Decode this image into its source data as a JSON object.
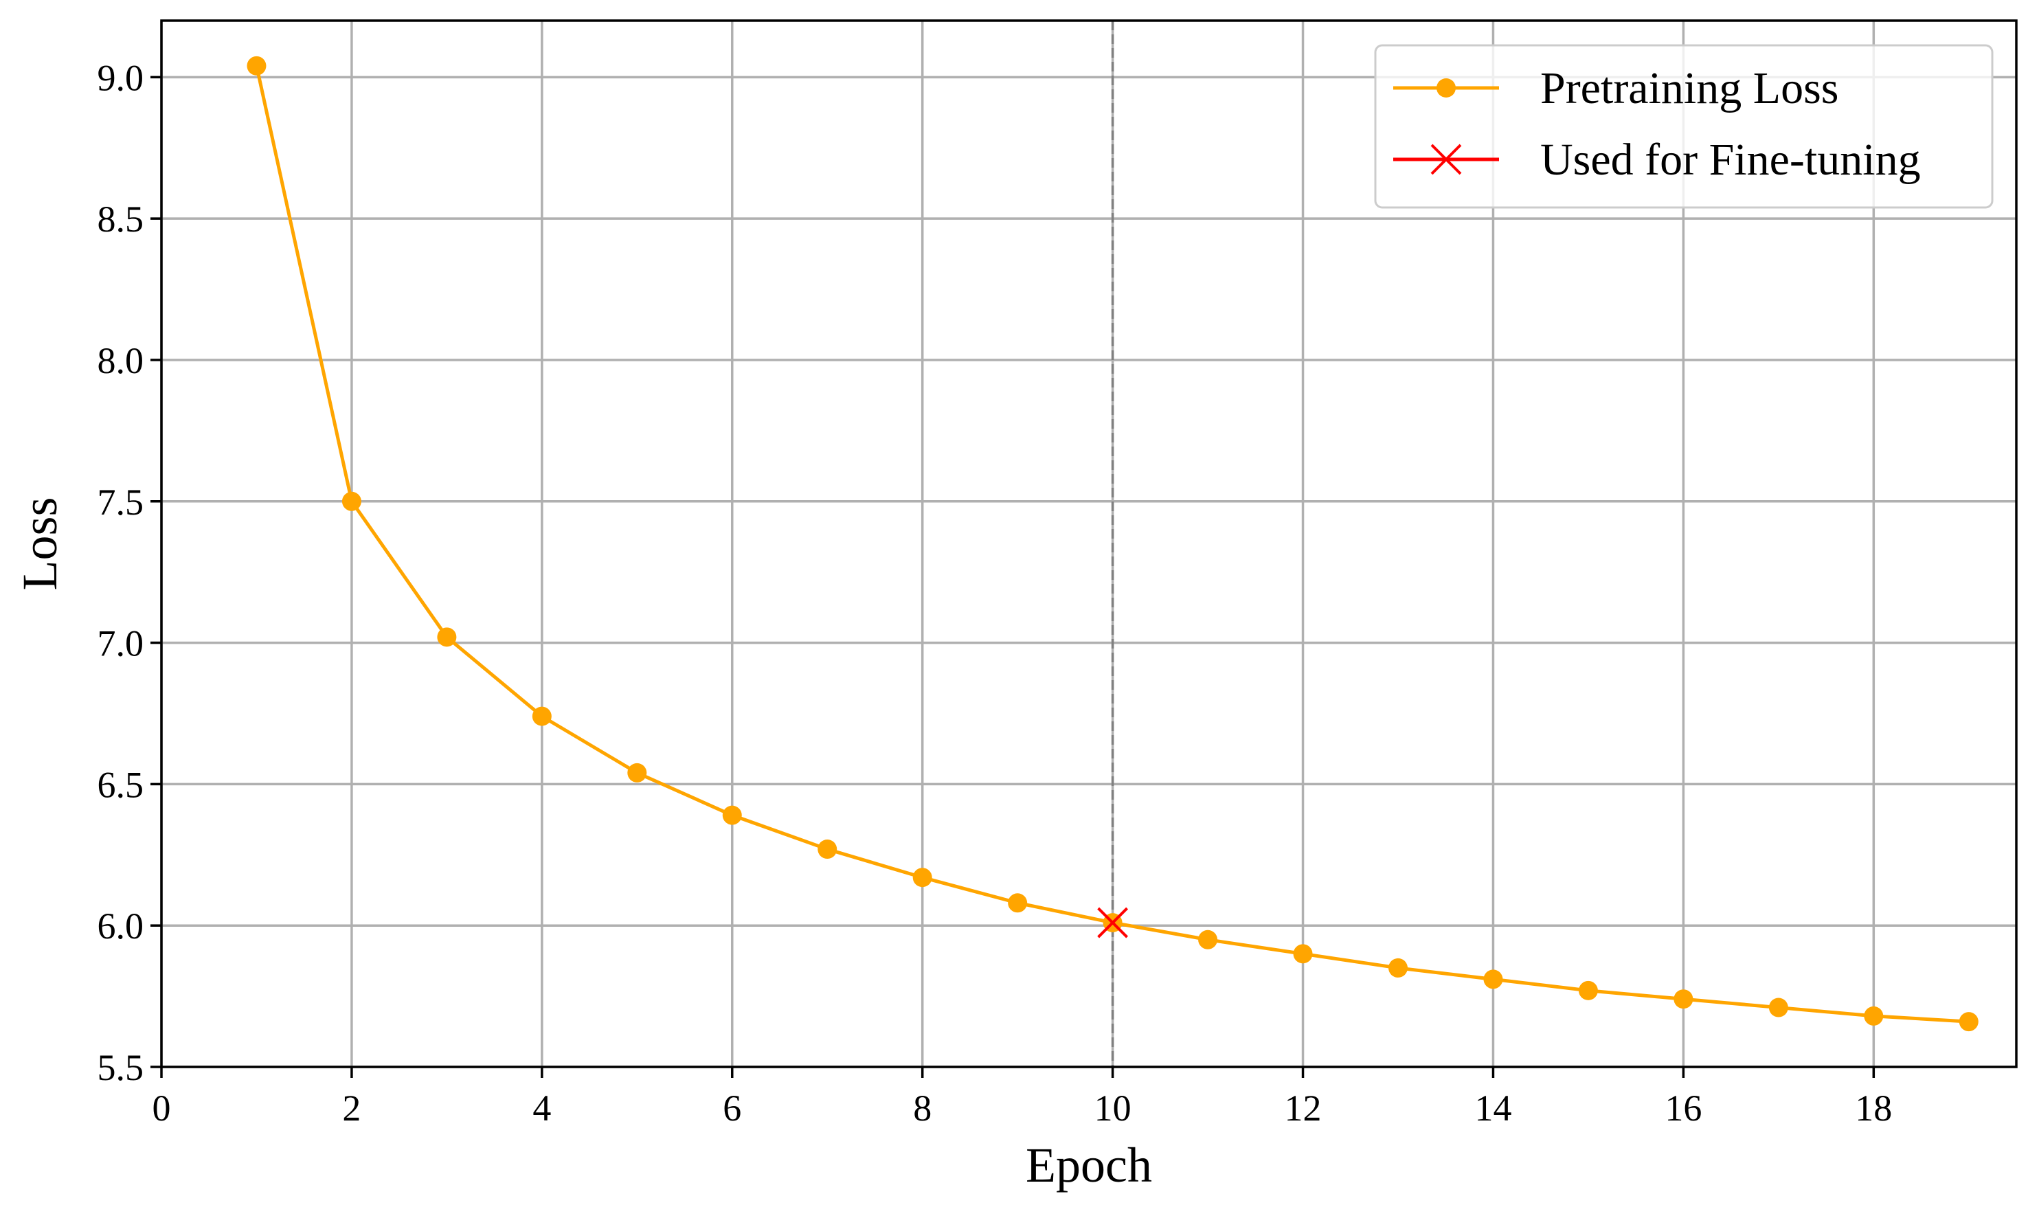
{
  "chart_data": {
    "type": "line",
    "title": "",
    "xlabel": "Epoch",
    "ylabel": "Loss",
    "xlim": [
      0,
      19.5
    ],
    "ylim": [
      5.5,
      9.2
    ],
    "xticks": [
      0,
      2,
      4,
      6,
      8,
      10,
      12,
      14,
      16,
      18
    ],
    "yticks": [
      5.5,
      6.0,
      6.5,
      7.0,
      7.5,
      8.0,
      8.5,
      9.0
    ],
    "ytick_labels": [
      "5.5",
      "6.0",
      "6.5",
      "7.0",
      "7.5",
      "8.0",
      "8.5",
      "9.0"
    ],
    "grid": true,
    "legend_position": "upper right",
    "x": [
      1,
      2,
      3,
      4,
      5,
      6,
      7,
      8,
      9,
      10,
      11,
      12,
      13,
      14,
      15,
      16,
      17,
      18,
      19
    ],
    "series": [
      {
        "name": "Pretraining Loss",
        "color": "#FFA500",
        "marker": "circle",
        "values": [
          9.04,
          7.5,
          7.02,
          6.74,
          6.54,
          6.39,
          6.27,
          6.17,
          6.08,
          6.01,
          5.95,
          5.9,
          5.85,
          5.81,
          5.77,
          5.74,
          5.71,
          5.68,
          5.66
        ]
      },
      {
        "name": "Used for Fine-tuning",
        "color": "#FF0000",
        "marker": "x",
        "x": [
          10
        ],
        "values": [
          6.01
        ]
      }
    ],
    "annotations": [
      {
        "type": "vline",
        "x": 10,
        "style": "dashed",
        "color": "#808080"
      }
    ]
  },
  "legend": {
    "items": [
      {
        "label": "Pretraining Loss",
        "color": "#FFA500",
        "marker": "circle"
      },
      {
        "label": "Used for Fine-tuning",
        "color": "#FF0000",
        "marker": "x"
      }
    ]
  },
  "axes": {
    "xlabel": "Epoch",
    "ylabel": "Loss"
  }
}
